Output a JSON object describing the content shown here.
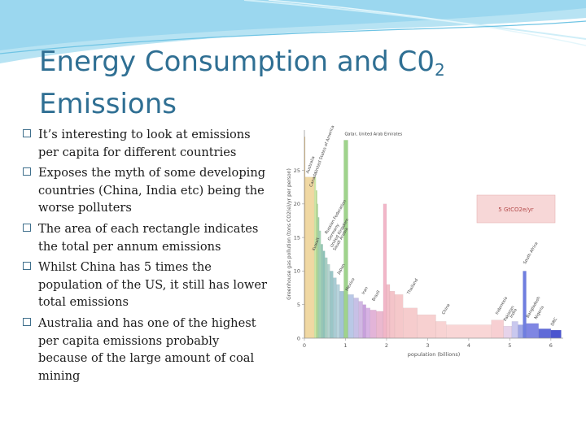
{
  "slide": {
    "title_line1_pre": "Energy Consumption and C0",
    "title_sub": "2",
    "title_line2": "Emissions"
  },
  "bullets": [
    "It’s interesting to look at emissions per capita for different countries",
    "Exposes the myth of some developing countries (China, India etc) being the worse polluters",
    "The area of each rectangle indicates the total per annum emissions",
    "Whilst China has 5 times the population of the US, it still has lower total emissions",
    "Australia and has one of the highest per capita emissions probably because of the large amount of coal mining"
  ],
  "colors": {
    "title": "#2f6f93",
    "bullet_box": "#3f6f8c",
    "banner": "#7fd0ea"
  },
  "chart_data": {
    "type": "bar",
    "title": "",
    "xlabel": "population (billions)",
    "ylabel": "Greenhouse gas pollution (tons CO2(e)/yr per person)",
    "xlim": [
      0,
      6.3
    ],
    "ylim": [
      0,
      31
    ],
    "xticks": [
      "0",
      "1",
      "2",
      "3",
      "4",
      "5",
      "6"
    ],
    "yticks": [
      "0",
      "5",
      "10",
      "15",
      "20",
      "25"
    ],
    "legend_box": "5 GtCO2e/yr",
    "bars": [
      {
        "x0": 0.0,
        "x1": 0.02,
        "y": 30.0,
        "color": "#e9c27d"
      },
      {
        "x0": 0.02,
        "x1": 0.24,
        "y": 24.0,
        "color": "#f0d8a3"
      },
      {
        "x0": 0.24,
        "x1": 0.28,
        "y": 24.0,
        "color": "#cfe8a6"
      },
      {
        "x0": 0.28,
        "x1": 0.31,
        "y": 22.0,
        "color": "#b9de8f"
      },
      {
        "x0": 0.31,
        "x1": 0.33,
        "y": 20.0,
        "color": "#a9d69a"
      },
      {
        "x0": 0.33,
        "x1": 0.36,
        "y": 18.0,
        "color": "#9fd0a8"
      },
      {
        "x0": 0.36,
        "x1": 0.4,
        "y": 16.0,
        "color": "#a5d3b4"
      },
      {
        "x0": 0.4,
        "x1": 0.45,
        "y": 14.0,
        "color": "#97c9b6"
      },
      {
        "x0": 0.45,
        "x1": 0.5,
        "y": 13.0,
        "color": "#8ec2b8"
      },
      {
        "x0": 0.5,
        "x1": 0.56,
        "y": 12.0,
        "color": "#a7cfc3"
      },
      {
        "x0": 0.56,
        "x1": 0.62,
        "y": 11.0,
        "color": "#b4d3cf"
      },
      {
        "x0": 0.62,
        "x1": 0.7,
        "y": 10.0,
        "color": "#9ac6c7"
      },
      {
        "x0": 0.7,
        "x1": 0.78,
        "y": 9.0,
        "color": "#a9ccd3"
      },
      {
        "x0": 0.78,
        "x1": 0.86,
        "y": 8.0,
        "color": "#b7d3dc"
      },
      {
        "x0": 0.86,
        "x1": 0.96,
        "y": 7.0,
        "color": "#a4c3d8"
      },
      {
        "x0": 0.96,
        "x1": 1.06,
        "y": 29.5,
        "color": "#9fd38c"
      },
      {
        "x0": 1.06,
        "x1": 1.2,
        "y": 6.5,
        "color": "#b9c8e6"
      },
      {
        "x0": 1.2,
        "x1": 1.32,
        "y": 6.0,
        "color": "#c7c0e6"
      },
      {
        "x0": 1.32,
        "x1": 1.42,
        "y": 5.5,
        "color": "#d1b8e3"
      },
      {
        "x0": 1.42,
        "x1": 1.5,
        "y": 5.0,
        "color": "#c7a0dc"
      },
      {
        "x0": 1.5,
        "x1": 1.6,
        "y": 4.5,
        "color": "#d7b2e4"
      },
      {
        "x0": 1.6,
        "x1": 1.75,
        "y": 4.2,
        "color": "#e3b4d8"
      },
      {
        "x0": 1.75,
        "x1": 1.92,
        "y": 4.0,
        "color": "#ebb8cf"
      },
      {
        "x0": 1.92,
        "x1": 2.0,
        "y": 20.0,
        "color": "#f2b6c8"
      },
      {
        "x0": 2.0,
        "x1": 2.08,
        "y": 8.0,
        "color": "#f3bfc9"
      },
      {
        "x0": 2.08,
        "x1": 2.2,
        "y": 7.0,
        "color": "#f4c4c9"
      },
      {
        "x0": 2.2,
        "x1": 2.4,
        "y": 6.5,
        "color": "#f5c8ca"
      },
      {
        "x0": 2.4,
        "x1": 2.75,
        "y": 4.5,
        "color": "#f6cccd"
      },
      {
        "x0": 2.75,
        "x1": 3.2,
        "y": 3.5,
        "color": "#f7d0d0"
      },
      {
        "x0": 3.2,
        "x1": 3.45,
        "y": 2.5,
        "color": "#f8d3d3"
      },
      {
        "x0": 3.45,
        "x1": 4.55,
        "y": 2.0,
        "color": "#f9d6d6"
      },
      {
        "x0": 4.55,
        "x1": 4.85,
        "y": 2.7,
        "color": "#f7cfd2"
      },
      {
        "x0": 4.85,
        "x1": 5.05,
        "y": 1.8,
        "color": "#e6d3ea"
      },
      {
        "x0": 5.05,
        "x1": 5.2,
        "y": 2.5,
        "color": "#c9c8ee"
      },
      {
        "x0": 5.2,
        "x1": 5.32,
        "y": 2.0,
        "color": "#9ea6e6"
      },
      {
        "x0": 5.32,
        "x1": 5.4,
        "y": 10.0,
        "color": "#6f7ee0"
      },
      {
        "x0": 5.4,
        "x1": 5.7,
        "y": 2.2,
        "color": "#7f86e3"
      },
      {
        "x0": 5.7,
        "x1": 6.0,
        "y": 1.4,
        "color": "#5f6ad8"
      },
      {
        "x0": 6.0,
        "x1": 6.25,
        "y": 1.2,
        "color": "#4b55cf"
      }
    ],
    "annotations": [
      "Qatar, United Arab Emirates",
      "Australia",
      "United States of America",
      "Canada",
      "Kuwait",
      "Russian Federation",
      "Germany",
      "United Kingdom",
      "Saudi Arabia",
      "Japan",
      "Mexico",
      "Iran",
      "Brazil",
      "Thailand",
      "China",
      "Indonesia",
      "Pakistan",
      "India",
      "Bangladesh",
      "Nigeria",
      "South Africa",
      "DRC"
    ]
  }
}
